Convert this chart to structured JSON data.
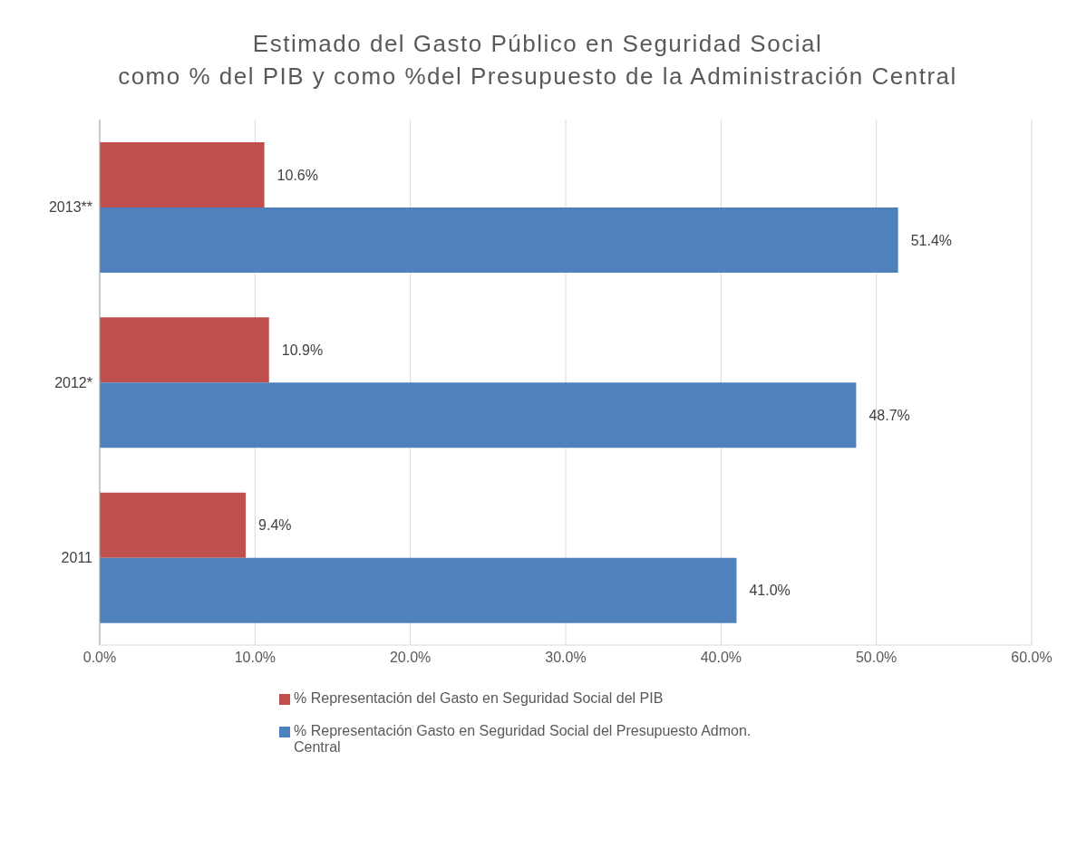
{
  "chart_data": {
    "type": "bar",
    "orientation": "horizontal",
    "title": "Estimado del Gasto Público en Seguridad Social\ncomo % del PIB y como %del Presupuesto de la Administración Central",
    "categories": [
      "2013**",
      "2012*",
      "2011"
    ],
    "series": [
      {
        "name": "% Representación del Gasto en Seguridad Social del PIB",
        "color": "#c0504d",
        "values": [
          10.6,
          10.9,
          9.4
        ],
        "value_labels": [
          "10.6%",
          "10.9%",
          "9.4%"
        ]
      },
      {
        "name": "% Representación Gasto en Seguridad Social del Presupuesto Admon. Central",
        "color": "#4f81bd",
        "values": [
          51.4,
          48.7,
          41.0
        ],
        "value_labels": [
          "51.4%",
          "48.7%",
          "41.0%"
        ]
      }
    ],
    "xlim": [
      0,
      60
    ],
    "xticks": [
      {
        "value": 0,
        "label": "0.0%"
      },
      {
        "value": 10,
        "label": "10.0%"
      },
      {
        "value": 20,
        "label": "20.0%"
      },
      {
        "value": 30,
        "label": "30.0%"
      },
      {
        "value": 40,
        "label": "40.0%"
      },
      {
        "value": 50,
        "label": "50.0%"
      },
      {
        "value": 60,
        "label": "60.0%"
      }
    ],
    "grid": "x",
    "legend": "bottom"
  }
}
